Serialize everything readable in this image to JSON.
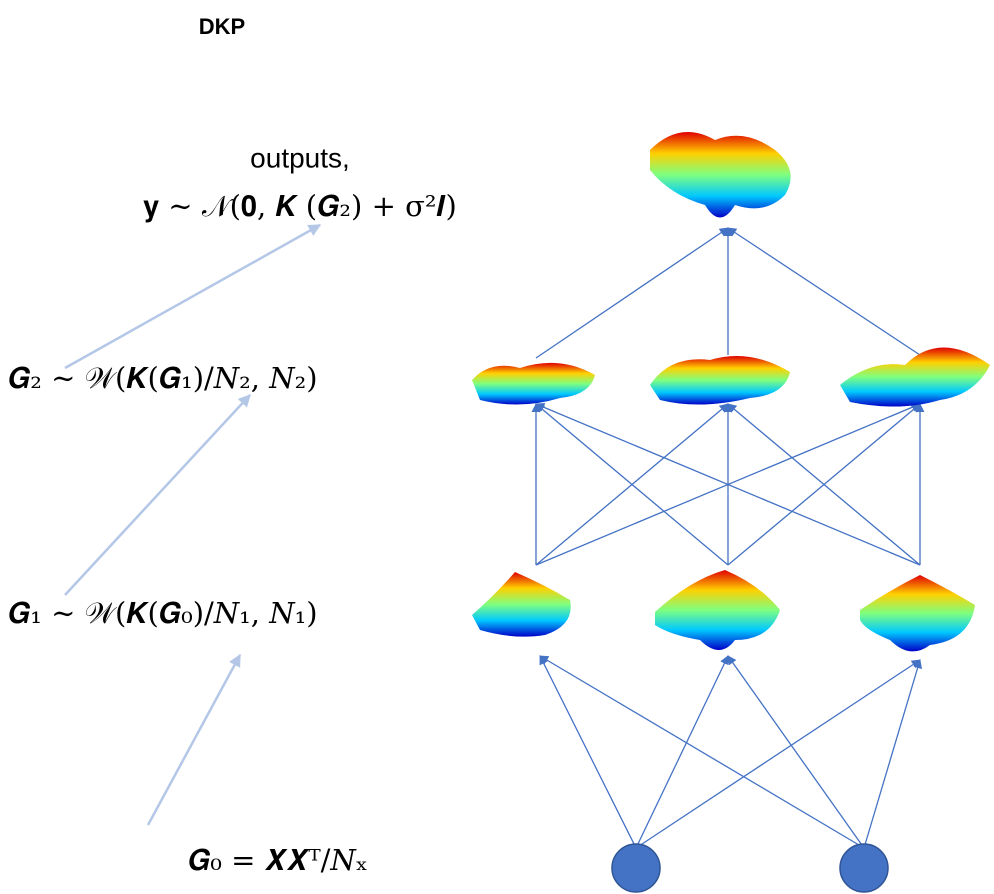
{
  "header": {
    "title": "DKP"
  },
  "labels": {
    "outputs": "outputs,",
    "output_formula": "𝐲 ∼ 𝒩(𝟎, 𝑲 (𝑮₂) + σ²𝑰)",
    "layer2_formula": "𝑮₂ ∼ 𝒲(𝑲(𝑮₁)/𝑁₂, 𝑁₂)",
    "layer1_formula": "𝑮₁ ∼ 𝒲(𝑲(𝑮₀)/𝑁₁, 𝑁₁)",
    "input_formula": "𝑮₀ = 𝑿𝑿ᵀ/𝑁ₓ"
  }
}
